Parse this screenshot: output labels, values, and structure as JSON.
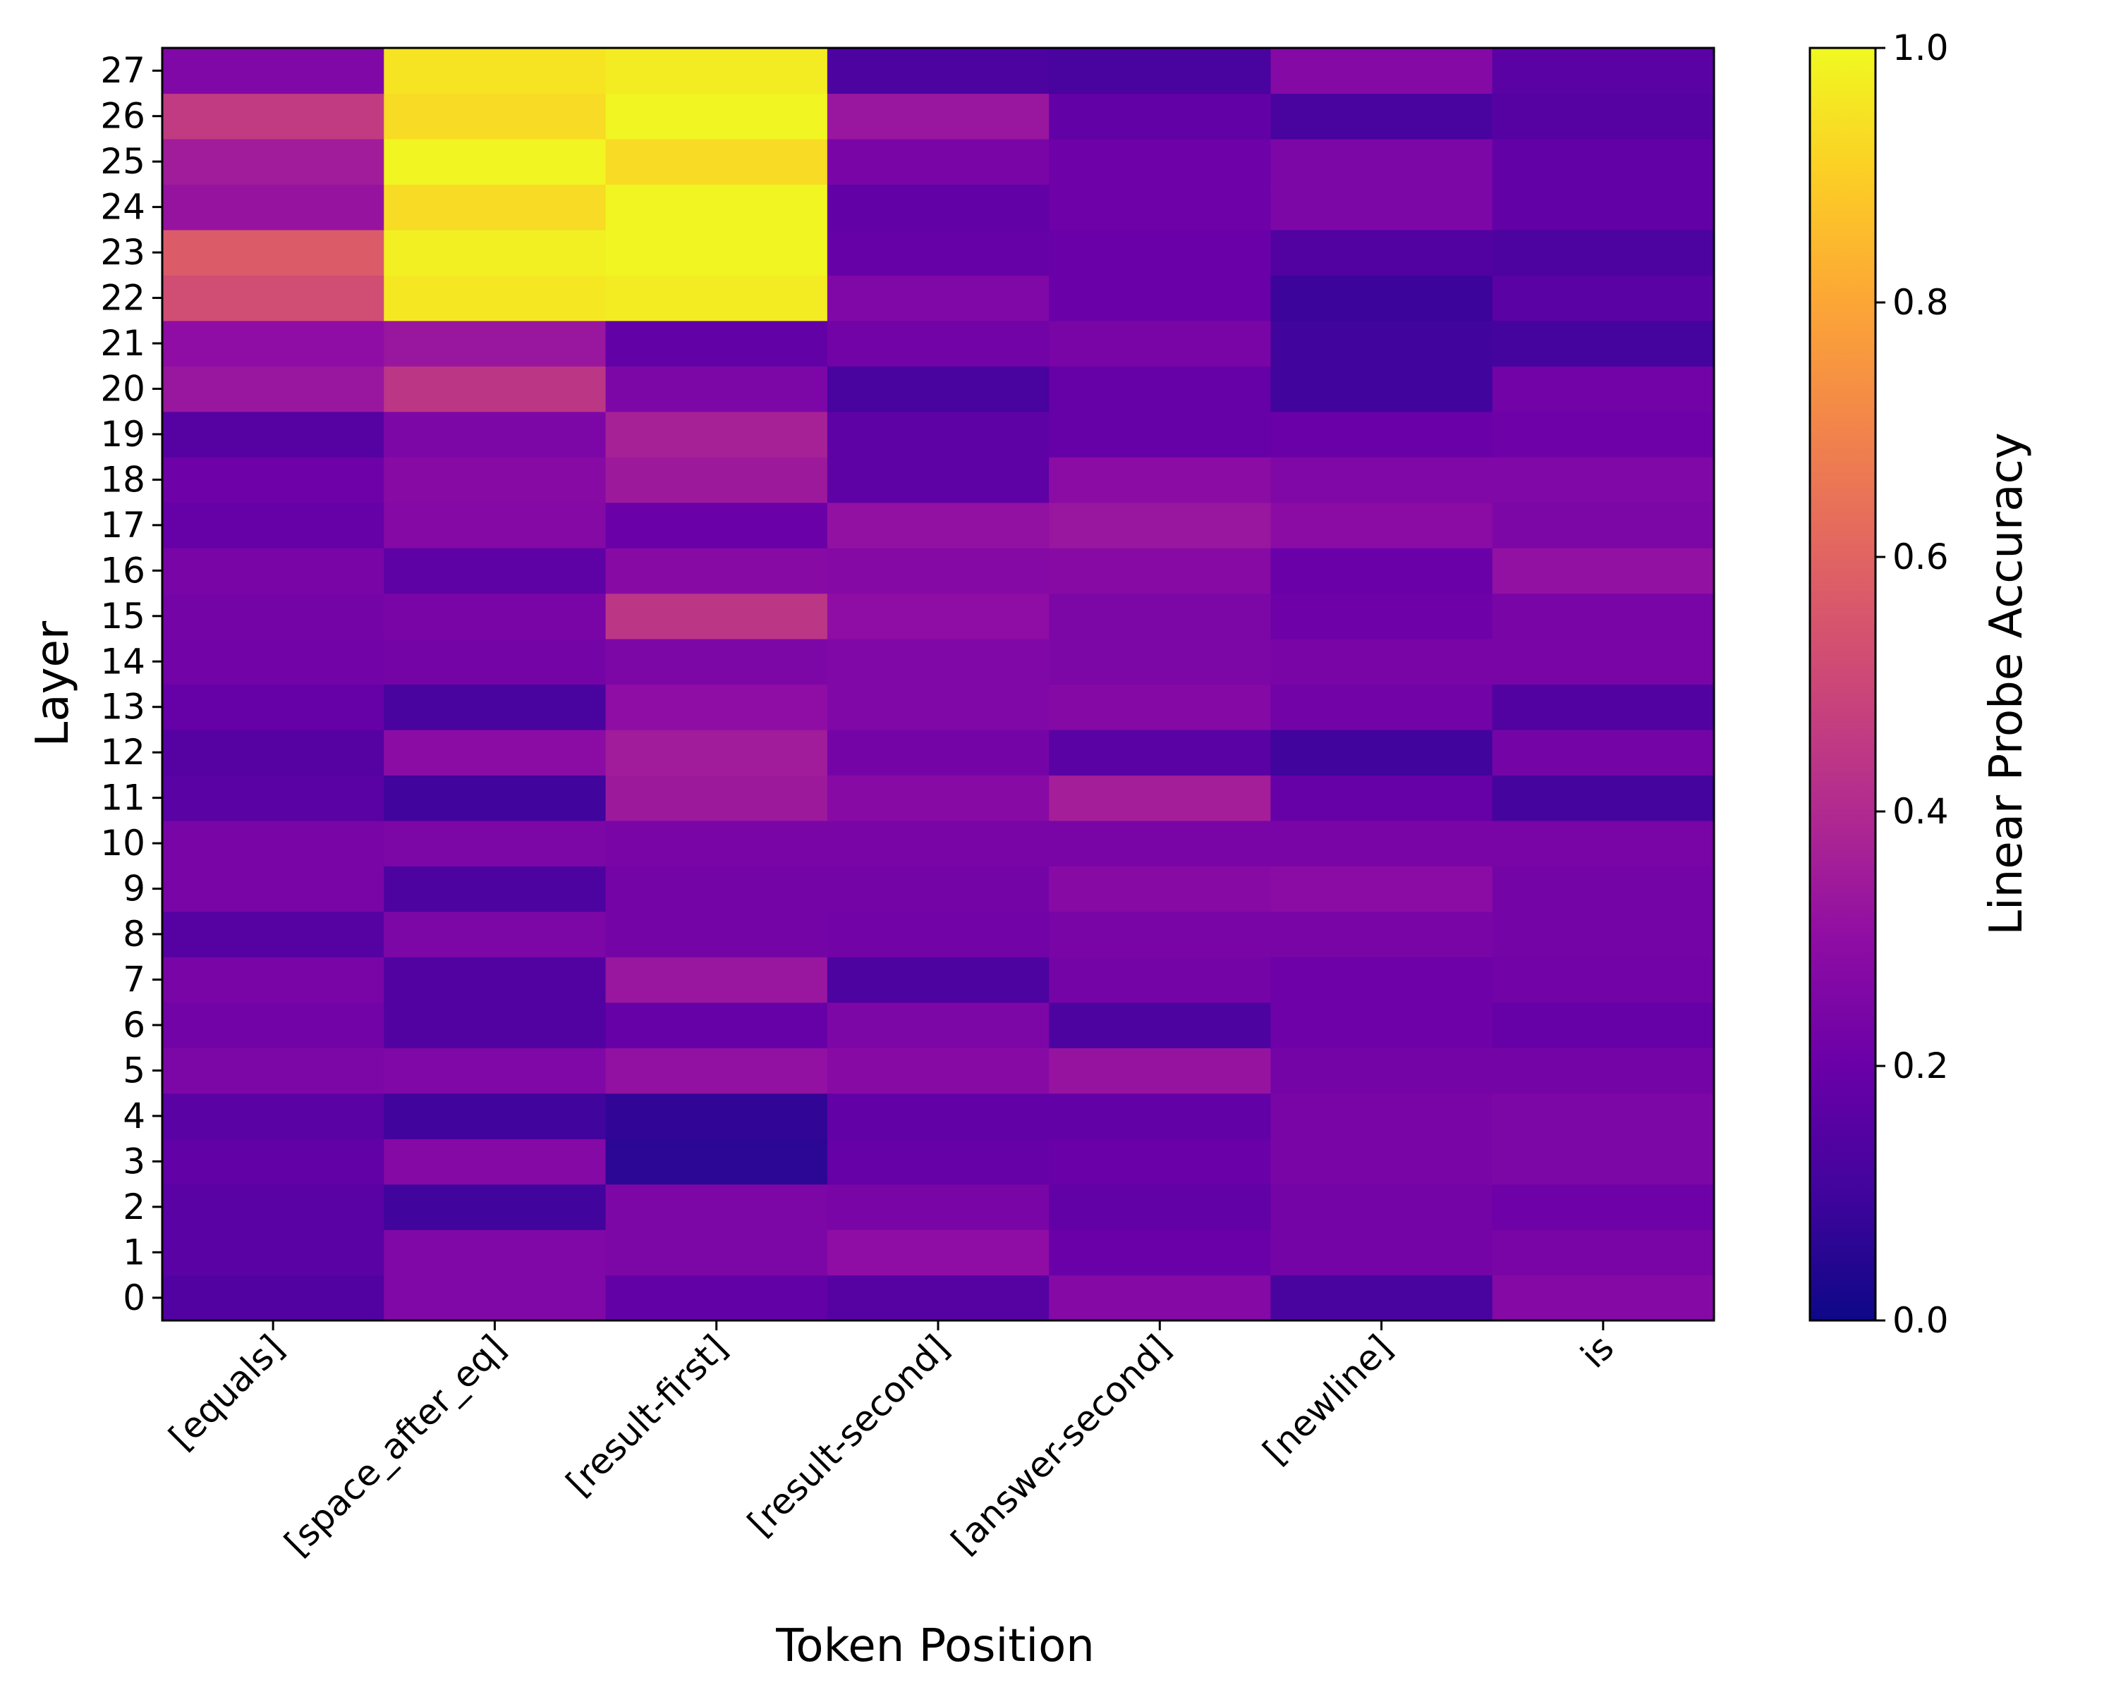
{
  "chart_data": {
    "type": "heatmap",
    "title": "",
    "xlabel": "Token Position",
    "ylabel": "Layer",
    "colorbar_label": "Linear Probe Accuracy",
    "colormap": "plasma",
    "vmin": 0.0,
    "vmax": 1.0,
    "colorbar_ticks": [
      "0.0",
      "0.2",
      "0.4",
      "0.6",
      "0.8",
      "1.0"
    ],
    "x_categories": [
      "[equals]",
      "[space_after_eq]",
      "[result-first]",
      "[result-second]",
      "[answer-second]",
      "[newline]",
      "is"
    ],
    "y_categories": [
      "0",
      "1",
      "2",
      "3",
      "4",
      "5",
      "6",
      "7",
      "8",
      "9",
      "10",
      "11",
      "12",
      "13",
      "14",
      "15",
      "16",
      "17",
      "18",
      "19",
      "20",
      "21",
      "22",
      "23",
      "24",
      "25",
      "26",
      "27"
    ],
    "values": [
      [
        0.14,
        0.26,
        0.18,
        0.15,
        0.27,
        0.12,
        0.27
      ],
      [
        0.16,
        0.26,
        0.25,
        0.3,
        0.2,
        0.23,
        0.24
      ],
      [
        0.16,
        0.1,
        0.25,
        0.24,
        0.18,
        0.23,
        0.21
      ],
      [
        0.18,
        0.27,
        0.06,
        0.19,
        0.2,
        0.24,
        0.25
      ],
      [
        0.16,
        0.1,
        0.07,
        0.18,
        0.18,
        0.24,
        0.25
      ],
      [
        0.25,
        0.26,
        0.31,
        0.28,
        0.32,
        0.23,
        0.23
      ],
      [
        0.22,
        0.14,
        0.19,
        0.25,
        0.13,
        0.21,
        0.19
      ],
      [
        0.24,
        0.14,
        0.33,
        0.13,
        0.23,
        0.21,
        0.22
      ],
      [
        0.15,
        0.25,
        0.23,
        0.22,
        0.24,
        0.24,
        0.23
      ],
      [
        0.24,
        0.13,
        0.23,
        0.23,
        0.28,
        0.29,
        0.23
      ],
      [
        0.24,
        0.25,
        0.24,
        0.24,
        0.24,
        0.24,
        0.24
      ],
      [
        0.16,
        0.1,
        0.34,
        0.28,
        0.36,
        0.19,
        0.11
      ],
      [
        0.15,
        0.29,
        0.35,
        0.23,
        0.16,
        0.1,
        0.23
      ],
      [
        0.19,
        0.12,
        0.3,
        0.26,
        0.27,
        0.22,
        0.14
      ],
      [
        0.22,
        0.23,
        0.25,
        0.26,
        0.25,
        0.24,
        0.24
      ],
      [
        0.23,
        0.24,
        0.44,
        0.3,
        0.25,
        0.21,
        0.24
      ],
      [
        0.24,
        0.17,
        0.28,
        0.27,
        0.28,
        0.2,
        0.31
      ],
      [
        0.19,
        0.27,
        0.2,
        0.31,
        0.33,
        0.29,
        0.25
      ],
      [
        0.21,
        0.28,
        0.34,
        0.17,
        0.29,
        0.26,
        0.26
      ],
      [
        0.15,
        0.25,
        0.37,
        0.17,
        0.19,
        0.2,
        0.21
      ],
      [
        0.33,
        0.44,
        0.25,
        0.12,
        0.19,
        0.1,
        0.22
      ],
      [
        0.3,
        0.33,
        0.18,
        0.22,
        0.24,
        0.1,
        0.11
      ],
      [
        0.52,
        0.96,
        0.97,
        0.26,
        0.2,
        0.09,
        0.16
      ],
      [
        0.57,
        0.98,
        0.99,
        0.19,
        0.2,
        0.14,
        0.13
      ],
      [
        0.32,
        0.93,
        0.99,
        0.18,
        0.21,
        0.25,
        0.18
      ],
      [
        0.35,
        0.99,
        0.93,
        0.24,
        0.21,
        0.25,
        0.18
      ],
      [
        0.46,
        0.93,
        0.99,
        0.33,
        0.18,
        0.12,
        0.15
      ],
      [
        0.26,
        0.95,
        0.97,
        0.13,
        0.12,
        0.27,
        0.16
      ]
    ]
  }
}
